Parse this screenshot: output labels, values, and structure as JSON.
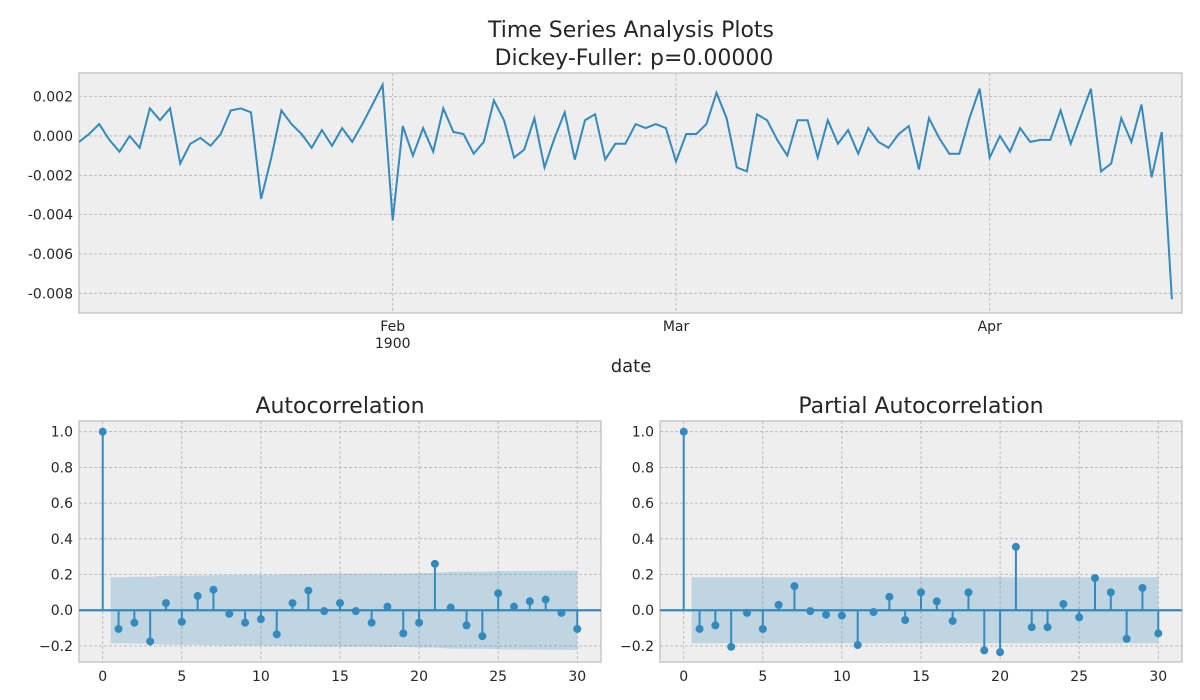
{
  "figure": {
    "title_line1": "Time Series Analysis Plots",
    "title_line2": "Dickey-Fuller: p=0.00000"
  },
  "chart_data": [
    {
      "type": "line",
      "xlabel": "date",
      "x_ticks": [
        {
          "day": 31,
          "label": "Feb",
          "sublabel": "1900"
        },
        {
          "day": 59,
          "label": "Mar",
          "sublabel": ""
        },
        {
          "day": 90,
          "label": "Apr",
          "sublabel": ""
        }
      ],
      "x_start": "1900-01-01",
      "xlim": [
        0,
        109
      ],
      "ylim": [
        -0.009,
        0.0032
      ],
      "y_ticks": [
        "0.002",
        "0.000",
        "-0.002",
        "-0.004",
        "-0.006",
        "-0.008"
      ],
      "y_tick_values": [
        0.002,
        0.0,
        -0.002,
        -0.004,
        -0.006,
        -0.008
      ],
      "color": "#348abd",
      "grid": true,
      "values": [
        -0.0003,
        0.0001,
        0.0006,
        -0.0002,
        -0.0008,
        0.0,
        -0.0006,
        0.0014,
        0.0008,
        0.0014,
        -0.0014,
        -0.0004,
        -0.0001,
        -0.0005,
        0.0001,
        0.0013,
        0.0014,
        0.0012,
        -0.0032,
        -0.0011,
        0.0013,
        0.0006,
        0.0001,
        -0.0006,
        0.0003,
        -0.0005,
        0.0004,
        -0.0003,
        0.0006,
        0.0016,
        0.0026,
        -0.0043,
        0.0005,
        -0.001,
        0.0004,
        -0.0008,
        0.0014,
        0.0002,
        0.0001,
        -0.0009,
        -0.0003,
        0.0018,
        0.0008,
        -0.0011,
        -0.0007,
        0.0009,
        -0.0016,
        -0.0001,
        0.0012,
        -0.0012,
        0.0008,
        0.0011,
        -0.0012,
        -0.0004,
        -0.0004,
        0.0006,
        0.0004,
        0.0006,
        0.0004,
        -0.0013,
        0.0001,
        0.0001,
        0.0006,
        0.0022,
        0.0009,
        -0.0016,
        -0.0018,
        0.0011,
        0.0008,
        -0.0002,
        -0.001,
        0.0008,
        0.0008,
        -0.0011,
        0.0008,
        -0.0004,
        0.0003,
        -0.0009,
        0.0004,
        -0.0003,
        -0.0006,
        0.0001,
        0.0005,
        -0.0017,
        0.0009,
        -0.0001,
        -0.0009,
        -0.0009,
        0.0009,
        0.0024,
        -0.0011,
        0.0,
        -0.0008,
        0.0004,
        -0.0003,
        -0.0002,
        -0.0002,
        0.0013,
        -0.0004,
        0.001,
        0.0024,
        -0.0018,
        -0.0014,
        0.0009,
        -0.0003,
        0.0016,
        -0.0021,
        0.0002,
        -0.0083
      ]
    },
    {
      "type": "stem",
      "title": "Autocorrelation",
      "xlim": [
        -1.5,
        31.5
      ],
      "ylim": [
        -0.29,
        1.06
      ],
      "x_ticks": [
        0,
        5,
        10,
        15,
        20,
        25,
        30
      ],
      "y_ticks": [
        1.0,
        0.8,
        0.6,
        0.4,
        0.2,
        0.0,
        -0.2
      ],
      "y_tick_labels": [
        "1.0",
        "0.8",
        "0.6",
        "0.4",
        "0.2",
        "0.0",
        "−0.2"
      ],
      "lags": [
        0,
        1,
        2,
        3,
        4,
        5,
        6,
        7,
        8,
        9,
        10,
        11,
        12,
        13,
        14,
        15,
        16,
        17,
        18,
        19,
        20,
        21,
        22,
        23,
        24,
        25,
        26,
        27,
        28,
        29,
        30
      ],
      "values": [
        1.0,
        -0.105,
        -0.07,
        -0.175,
        0.04,
        -0.065,
        0.08,
        0.115,
        -0.02,
        -0.07,
        -0.05,
        -0.135,
        0.04,
        0.11,
        -0.005,
        0.04,
        -0.005,
        -0.07,
        0.02,
        -0.13,
        -0.07,
        0.26,
        0.015,
        -0.085,
        -0.145,
        0.095,
        0.02,
        0.05,
        0.06,
        -0.015,
        -0.105
      ],
      "confint_upper": [
        0.185,
        0.185,
        0.187,
        0.187,
        0.193,
        0.193,
        0.194,
        0.196,
        0.198,
        0.198,
        0.198,
        0.199,
        0.202,
        0.203,
        0.205,
        0.205,
        0.205,
        0.205,
        0.206,
        0.206,
        0.208,
        0.209,
        0.215,
        0.216,
        0.216,
        0.219,
        0.22,
        0.22,
        0.221,
        0.221,
        0.222
      ],
      "color": "#348abd",
      "grid": true
    },
    {
      "type": "stem",
      "title": "Partial Autocorrelation",
      "xlim": [
        -1.5,
        31.5
      ],
      "ylim": [
        -0.29,
        1.06
      ],
      "x_ticks": [
        0,
        5,
        10,
        15,
        20,
        25,
        30
      ],
      "y_ticks": [
        1.0,
        0.8,
        0.6,
        0.4,
        0.2,
        0.0,
        -0.2
      ],
      "y_tick_labels": [
        "1.0",
        "0.8",
        "0.6",
        "0.4",
        "0.2",
        "0.0",
        "−0.2"
      ],
      "lags": [
        0,
        1,
        2,
        3,
        4,
        5,
        6,
        7,
        8,
        9,
        10,
        11,
        12,
        13,
        14,
        15,
        16,
        17,
        18,
        19,
        20,
        21,
        22,
        23,
        24,
        25,
        26,
        27,
        28,
        29,
        30
      ],
      "values": [
        1.0,
        -0.105,
        -0.085,
        -0.205,
        -0.015,
        -0.105,
        0.03,
        0.135,
        -0.005,
        -0.025,
        -0.03,
        -0.195,
        -0.01,
        0.075,
        -0.055,
        0.1,
        0.05,
        -0.06,
        0.1,
        -0.225,
        -0.235,
        0.355,
        -0.095,
        -0.095,
        0.035,
        -0.04,
        0.18,
        0.1,
        -0.16,
        0.125,
        -0.13
      ],
      "confint_upper": [
        0.185,
        0.185,
        0.185,
        0.185,
        0.185,
        0.185,
        0.185,
        0.185,
        0.185,
        0.185,
        0.185,
        0.185,
        0.185,
        0.185,
        0.185,
        0.185,
        0.185,
        0.185,
        0.185,
        0.185,
        0.185,
        0.185,
        0.185,
        0.185,
        0.185,
        0.185,
        0.185,
        0.185,
        0.185,
        0.185,
        0.185
      ],
      "color": "#348abd",
      "grid": true
    }
  ]
}
